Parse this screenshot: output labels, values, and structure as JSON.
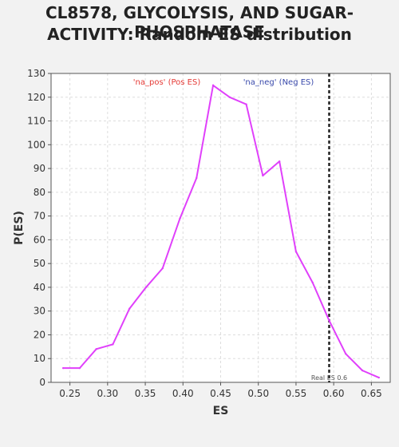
{
  "chart_data": {
    "type": "line",
    "title_line1": "CL8578, GLYCOLYSIS, AND SUGAR-PHOSPHATASE",
    "title_line2": "ACTIVITY: Random ES distribution",
    "xlabel": "ES",
    "ylabel": "P(ES)",
    "xlim": [
      0.225,
      0.675
    ],
    "ylim": [
      0,
      130
    ],
    "xticks": [
      0.25,
      0.3,
      0.35,
      0.4,
      0.45,
      0.5,
      0.55,
      0.6,
      0.65
    ],
    "xtick_labels": [
      "0.25",
      "0.30",
      "0.35",
      "0.40",
      "0.45",
      "0.50",
      "0.55",
      "0.60",
      "0.65"
    ],
    "yticks": [
      0,
      10,
      20,
      30,
      40,
      50,
      60,
      70,
      80,
      90,
      100,
      110,
      120,
      130
    ],
    "grid": true,
    "series": [
      {
        "color": "#e040fb",
        "x": [
          0.241,
          0.263,
          0.285,
          0.307,
          0.329,
          0.351,
          0.373,
          0.396,
          0.418,
          0.44,
          0.462,
          0.484,
          0.506,
          0.528,
          0.55,
          0.572,
          0.594,
          0.616,
          0.638,
          0.66
        ],
        "y": [
          6,
          6,
          14,
          16,
          31,
          40,
          48,
          69,
          86,
          125,
          120,
          117,
          87,
          93,
          55,
          42,
          26,
          12,
          5,
          2
        ]
      }
    ],
    "annotations": {
      "pos_label": "'na_pos' (Pos ES)",
      "pos_color": "#e53935",
      "neg_label": "'na_neg' (Neg ES)",
      "neg_color": "#3949ab",
      "real_es_value": 0.594,
      "real_es_label": "Real ES 0.6"
    }
  }
}
